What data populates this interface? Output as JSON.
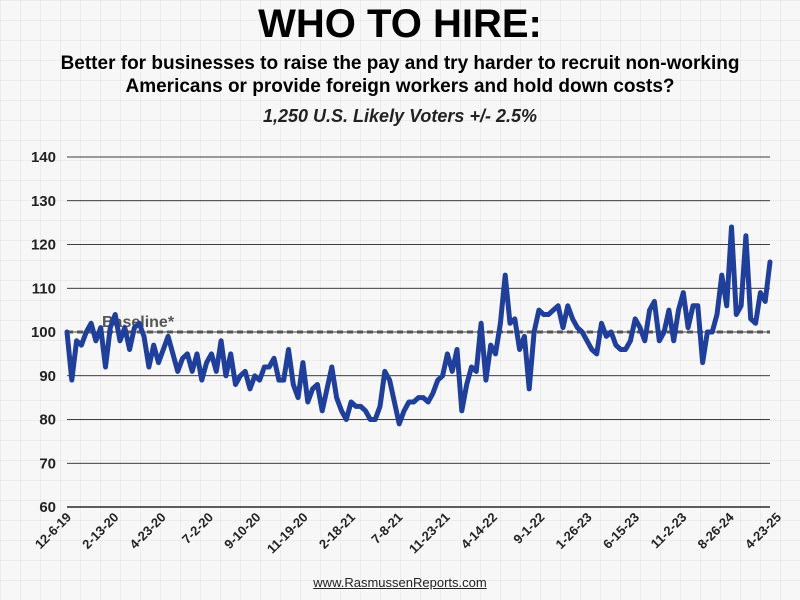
{
  "title": "WHO TO HIRE:",
  "subtitle": "Better for businesses to raise the pay and try harder to recruit non-working Americans or provide foreign workers and hold down costs?",
  "sample": "1,250 U.S. Likely Voters +/- 2.5%",
  "footer": "www.RasmussenReports.com",
  "colors": {
    "line": "#1f3f9a",
    "baseline": "#555555",
    "grid": "#000000"
  },
  "chart_data": {
    "type": "line",
    "title": "WHO TO HIRE:",
    "ylim": [
      60,
      140
    ],
    "yticks": [
      60,
      70,
      80,
      90,
      100,
      110,
      120,
      130,
      140
    ],
    "grid": true,
    "baseline": {
      "value": 100,
      "label": "Baseline*",
      "style": "dashed"
    },
    "x_tick_labels": [
      "12-6-19",
      "2-13-20",
      "4-23-20",
      "7-2-20",
      "9-10-20",
      "11-19-20",
      "2-18-21",
      "7-8-21",
      "11-23-21",
      "4-14-22",
      "9-1-22",
      "1-26-23",
      "6-15-23",
      "11-2-23",
      "8-26-24",
      "4-23-25"
    ],
    "series": [
      {
        "values": [
          100,
          89,
          98,
          97,
          100,
          102,
          98,
          101,
          92,
          101,
          104,
          98,
          101,
          96,
          101,
          102,
          99,
          92,
          97,
          93,
          96,
          99,
          95,
          91,
          94,
          95,
          91,
          95,
          89,
          93,
          95,
          91,
          98,
          90,
          95,
          88,
          90,
          91,
          87,
          90,
          89,
          92,
          92,
          94,
          89,
          89,
          96,
          88,
          85,
          93,
          84,
          87,
          88,
          82,
          87,
          92,
          85,
          82,
          80,
          84,
          83,
          83,
          82,
          80,
          80,
          83,
          91,
          89,
          84,
          79,
          82,
          84,
          84,
          85,
          85,
          84,
          86,
          89,
          90,
          95,
          91,
          96,
          82,
          88,
          92,
          91,
          102,
          89,
          97,
          95,
          102,
          113,
          102,
          103,
          96,
          99,
          87,
          100,
          105,
          104,
          104,
          105,
          106,
          101,
          106,
          103,
          101,
          100,
          98,
          96,
          95,
          102,
          99,
          100,
          97,
          96,
          96,
          98,
          103,
          101,
          98,
          105,
          107,
          98,
          100,
          105,
          98,
          105,
          109,
          101,
          106,
          106,
          93,
          100,
          100,
          104,
          113,
          106,
          124,
          104,
          106,
          122,
          103,
          102,
          109,
          107,
          116
        ]
      }
    ]
  }
}
